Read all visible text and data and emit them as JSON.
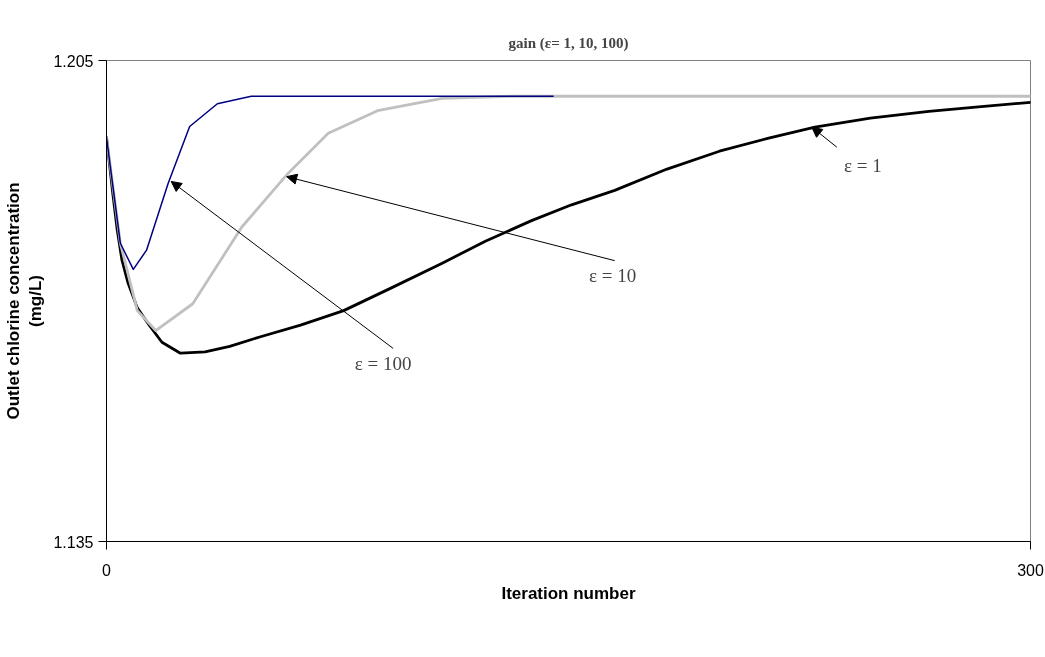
{
  "chart_data": {
    "type": "line",
    "title": "gain (ε= 1, 10, 100)",
    "xlabel": "Iteration number",
    "ylabel": "Outlet chlorine concentration\n(mg/L)",
    "xlim": [
      0,
      300
    ],
    "ylim": [
      1.135,
      1.205
    ],
    "xticks": [
      0,
      300
    ],
    "yticks": [
      1.135,
      1.205
    ],
    "marker": "none",
    "line_style": "solid",
    "series": [
      {
        "color": "#000000",
        "x": [
          0,
          2,
          3.5,
          5,
          7,
          10,
          14,
          18,
          24,
          32,
          40,
          50,
          63,
          77,
          92,
          109,
          123,
          138,
          151,
          165,
          182,
          199,
          215,
          230,
          248,
          267,
          284,
          300
        ],
        "values": [
          1.1938,
          1.1858,
          1.1803,
          1.176,
          1.1726,
          1.169,
          1.1664,
          1.164,
          1.1624,
          1.1626,
          1.1634,
          1.1648,
          1.1665,
          1.1686,
          1.1718,
          1.1755,
          1.1787,
          1.1817,
          1.184,
          1.1861,
          1.1892,
          1.1918,
          1.1937,
          1.1953,
          1.1966,
          1.1976,
          1.1983,
          1.1989
        ]
      },
      {
        "color": "#c0c0c0",
        "x": [
          0,
          4.5,
          10,
          16,
          28,
          44,
          59,
          72,
          88,
          109,
          131,
          300
        ],
        "values": [
          1.1938,
          1.1784,
          1.1686,
          1.1657,
          1.1696,
          1.1808,
          1.1886,
          1.1944,
          1.1977,
          1.1995,
          1.1998,
          1.1998
        ]
      },
      {
        "color": "#000080",
        "x": [
          0,
          4.5,
          8.7,
          13,
          20,
          27,
          36,
          47,
          145
        ],
        "values": [
          1.1938,
          1.1784,
          1.1746,
          1.1774,
          1.1871,
          1.1954,
          1.1987,
          1.1998,
          1.1998
        ]
      }
    ],
    "annotations": [
      {
        "text": "ε = 1",
        "x": 229,
        "y": 1.1953
      },
      {
        "text": "ε = 10",
        "x": 58.5,
        "y": 1.1881
      },
      {
        "text": "ε = 100",
        "x": 21,
        "y": 1.1874
      }
    ]
  }
}
